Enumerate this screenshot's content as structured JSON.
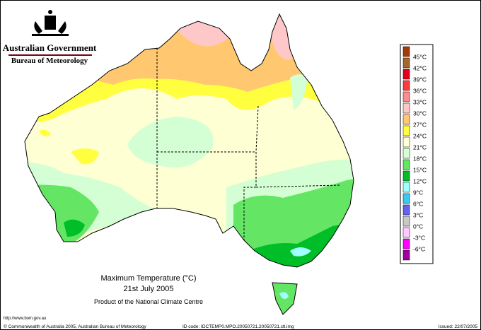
{
  "header": {
    "agency": "Australian Government",
    "bureau": "Bureau of Meteorology"
  },
  "map": {
    "title": "Maximum Temperature (°C)",
    "date": "21st July 2005",
    "product": "Product of the National Climate Centre"
  },
  "legend": {
    "labels": [
      "45°C",
      "42°C",
      "39°C",
      "36°C",
      "33°C",
      "30°C",
      "27°C",
      "24°C",
      "21°C",
      "18°C",
      "15°C",
      "12°C",
      "9°C",
      "6°C",
      "3°C",
      "0°C",
      "-3°C",
      "-6°C"
    ],
    "colors": [
      "#a33a0a",
      "#a8662e",
      "#e4001c",
      "#ff3c3c",
      "#ff8c8c",
      "#ffc8c8",
      "#ffc870",
      "#ffff40",
      "#ffffd4",
      "#d4ffd4",
      "#64e664",
      "#00be28",
      "#a0ffff",
      "#3cc8f0",
      "#6464f0",
      "#c8c8c8",
      "#ffc8ff",
      "#ff00ff",
      "#a000a0"
    ]
  },
  "footer": {
    "url": "http://www.bom.gov.au",
    "copyright": "© Commonwealth of Australia 2005, Australian Bureau of Meteorology",
    "id_code": "ID code: IDCTEMP0.MPO.20050721.20050721.ctl.img",
    "issued": "Issued: 22/07/2005"
  }
}
